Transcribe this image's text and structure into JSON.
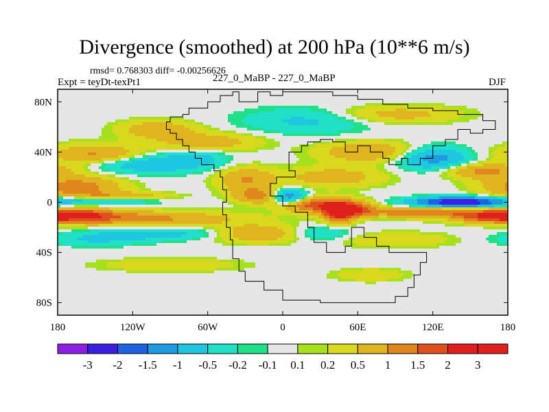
{
  "chart_data": {
    "type": "heatmap",
    "title": "Divergence (smoothed) at 200 hPa (10**6 m/s)",
    "stats": "rmsd= 0.768303 diff= -0.00256626",
    "expt": "Expt = teyDt-texPt1",
    "cases": "227_0_MaBP - 227_0_MaBP",
    "season": "DJF",
    "xlim": [
      -180,
      180
    ],
    "ylim": [
      -90,
      90
    ],
    "x_ticks": [
      {
        "value": -180,
        "label": "180"
      },
      {
        "value": -120,
        "label": "120W"
      },
      {
        "value": -60,
        "label": "60W"
      },
      {
        "value": 0,
        "label": "0"
      },
      {
        "value": 60,
        "label": "60E"
      },
      {
        "value": 120,
        "label": "120E"
      },
      {
        "value": 180,
        "label": "180"
      }
    ],
    "y_ticks": [
      {
        "value": 80,
        "label": "80N"
      },
      {
        "value": 40,
        "label": "40N"
      },
      {
        "value": 0,
        "label": "0"
      },
      {
        "value": -40,
        "label": "40S"
      },
      {
        "value": -80,
        "label": "80S"
      }
    ],
    "colorbar": {
      "levels": [
        "-3",
        "-2",
        "-1.5",
        "-1",
        "-0.5",
        "-0.2",
        "-0.1",
        "0.1",
        "0.2",
        "0.5",
        "1",
        "1.5",
        "2",
        "3"
      ],
      "colors": [
        "#8f1fe0",
        "#3a1fe0",
        "#1f63e0",
        "#1f9be0",
        "#1fc6e0",
        "#20e0c8",
        "#20e08a",
        "#e6e6e6",
        "#a6e01f",
        "#d8d81f",
        "#e0b41f",
        "#e0861f",
        "#e0501f",
        "#e0201f",
        "#e01f1f"
      ]
    },
    "features": [
      {
        "lon": -165,
        "lat": 12,
        "w": 35,
        "h": 9,
        "v": 1.3
      },
      {
        "lon": -150,
        "lat": 2,
        "w": 45,
        "h": 4,
        "v": -0.9
      },
      {
        "lon": -120,
        "lat": -13,
        "w": 80,
        "h": 6,
        "v": 1.2
      },
      {
        "lon": -165,
        "lat": -10,
        "w": 30,
        "h": 5,
        "v": 1.6
      },
      {
        "lon": -130,
        "lat": 5,
        "w": 40,
        "h": 3,
        "v": 1.0
      },
      {
        "lon": -150,
        "lat": 38,
        "w": 35,
        "h": 8,
        "v": 1.1
      },
      {
        "lon": -100,
        "lat": 58,
        "w": 30,
        "h": 7,
        "v": 0.9
      },
      {
        "lon": -110,
        "lat": 30,
        "w": 45,
        "h": 7,
        "v": -0.9
      },
      {
        "lon": -70,
        "lat": 35,
        "w": 25,
        "h": 7,
        "v": -0.6
      },
      {
        "lon": -100,
        "lat": -25,
        "w": 55,
        "h": 5,
        "v": -0.7
      },
      {
        "lon": -150,
        "lat": -30,
        "w": 40,
        "h": 5,
        "v": -0.5
      },
      {
        "lon": -60,
        "lat": 48,
        "w": 40,
        "h": 7,
        "v": 0.8
      },
      {
        "lon": -30,
        "lat": 18,
        "w": 22,
        "h": 10,
        "v": 1.0
      },
      {
        "lon": -20,
        "lat": 5,
        "w": 18,
        "h": 6,
        "v": 1.2
      },
      {
        "lon": 5,
        "lat": 4,
        "w": 14,
        "h": 6,
        "v": -1.6
      },
      {
        "lon": 25,
        "lat": -2,
        "w": 25,
        "h": 6,
        "v": 1.8
      },
      {
        "lon": 45,
        "lat": -8,
        "w": 12,
        "h": 8,
        "v": 2.4
      },
      {
        "lon": 60,
        "lat": -5,
        "w": 14,
        "h": 6,
        "v": 1.4
      },
      {
        "lon": 40,
        "lat": 20,
        "w": 40,
        "h": 8,
        "v": 0.8
      },
      {
        "lon": 20,
        "lat": 65,
        "w": 50,
        "h": 10,
        "v": -0.6
      },
      {
        "lon": 90,
        "lat": 70,
        "w": 50,
        "h": 7,
        "v": 0.7
      },
      {
        "lon": 70,
        "lat": 40,
        "w": 40,
        "h": 8,
        "v": 1.0
      },
      {
        "lon": 120,
        "lat": 35,
        "w": 28,
        "h": 9,
        "v": -1.3
      },
      {
        "lon": 160,
        "lat": 25,
        "w": 30,
        "h": 6,
        "v": 1.1
      },
      {
        "lon": 140,
        "lat": 0,
        "w": 35,
        "h": 4,
        "v": -2.6
      },
      {
        "lon": 115,
        "lat": -8,
        "w": 55,
        "h": 4,
        "v": 1.5
      },
      {
        "lon": 165,
        "lat": -12,
        "w": 25,
        "h": 4,
        "v": 1.2
      },
      {
        "lon": -20,
        "lat": -25,
        "w": 35,
        "h": 7,
        "v": 1.0
      },
      {
        "lon": 30,
        "lat": -25,
        "w": 25,
        "h": 6,
        "v": -0.6
      },
      {
        "lon": 90,
        "lat": -30,
        "w": 45,
        "h": 6,
        "v": 0.5
      },
      {
        "lon": -90,
        "lat": -50,
        "w": 55,
        "h": 5,
        "v": 0.5
      },
      {
        "lon": 70,
        "lat": -58,
        "w": 28,
        "h": 5,
        "v": 0.5
      }
    ]
  }
}
